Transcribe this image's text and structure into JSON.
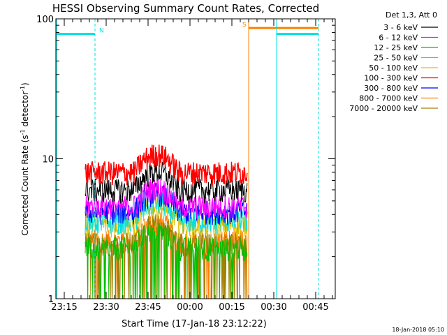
{
  "chart_data": {
    "type": "line",
    "title": "HESSI Observing Summary Count Rates, Corrected",
    "xlabel": "Start Time (17-Jan-18 23:12:22)",
    "ylabel": "Corrected Count Rate (s",
    "ylabel_sup": "-1",
    "ylabel_mid": " detector",
    "ylabel_sup2": "-1",
    "ylabel_end": ")",
    "y_scale": "log",
    "ylim": [
      1,
      100
    ],
    "xlim_minutes_from_2312": [
      0,
      100
    ],
    "x_ticks": [
      {
        "label": "23:15",
        "minutes": 3
      },
      {
        "label": "23:30",
        "minutes": 18
      },
      {
        "label": "23:45",
        "minutes": 33
      },
      {
        "label": "00:00",
        "minutes": 48
      },
      {
        "label": "00:15",
        "minutes": 63
      },
      {
        "label": "00:30",
        "minutes": 78
      },
      {
        "label": "00:45",
        "minutes": 93
      }
    ],
    "y_ticks": [
      {
        "label": "1",
        "value": 1
      },
      {
        "label": "10",
        "value": 10
      },
      {
        "label": "100",
        "value": 100
      }
    ],
    "legend_header": "Det 1,3, Att 0",
    "legend_placement": "right",
    "series": [
      {
        "name": "3 - 6 keV",
        "color": "#000000",
        "level": 6.0
      },
      {
        "name": "6 - 12 keV",
        "color": "#ff00ff",
        "level": 4.6
      },
      {
        "name": "12 - 25 keV",
        "color": "#00c000",
        "level": 2.3
      },
      {
        "name": "25 - 50 keV",
        "color": "#00e0e0",
        "level": 3.6
      },
      {
        "name": "50 - 100 keV",
        "color": "#e0c000",
        "level": 3.4
      },
      {
        "name": "100 - 300 keV",
        "color": "#ff0000",
        "level": 8.0
      },
      {
        "name": "300 - 800 keV",
        "color": "#0000ff",
        "level": 4.2
      },
      {
        "name": "800 - 7000 keV",
        "color": "#ff8000",
        "level": 2.6
      },
      {
        "name": "7000 - 20000 keV",
        "color": "#a08000",
        "level": 2.5
      }
    ],
    "data_interval_minutes": [
      10.5,
      68.5
    ],
    "peak_interval_minutes": [
      28,
      44
    ],
    "annotations": [
      {
        "label": "N",
        "color": "#00e0e0",
        "interval_minutes": [
          0,
          14
        ],
        "level": 78
      },
      {
        "label": "S",
        "color": "#ff8000",
        "interval_minutes": [
          69,
          94
        ],
        "level": 86
      },
      {
        "label": "",
        "color": "#00e0e0",
        "interval_minutes": [
          79,
          94
        ],
        "level": 78
      }
    ],
    "timestamp": "18-Jan-2018 05:10"
  }
}
